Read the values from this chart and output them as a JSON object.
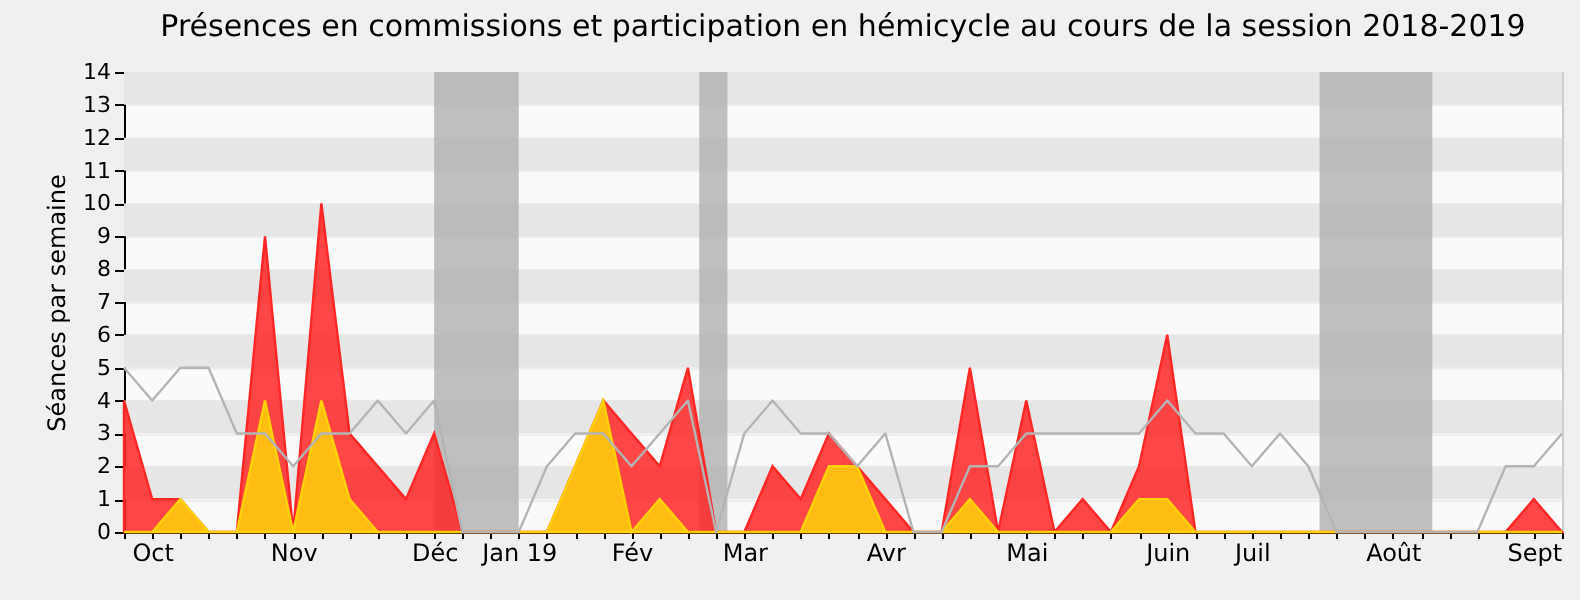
{
  "chart_data": {
    "type": "area",
    "title": "Présences en commissions et participation en hémicycle au cours de la session 2018-2019",
    "ylabel": "Séances par semaine",
    "categories": [
      null,
      "Oct",
      null,
      null,
      null,
      null,
      "Nov",
      null,
      null,
      null,
      null,
      "Déc",
      null,
      null,
      "Jan 19",
      null,
      null,
      null,
      "Fév",
      null,
      null,
      null,
      "Mar",
      null,
      null,
      null,
      null,
      "Avr",
      null,
      null,
      null,
      null,
      "Mai",
      null,
      null,
      null,
      null,
      "Juin",
      null,
      null,
      "Juil",
      null,
      null,
      null,
      null,
      "Août",
      null,
      null,
      null,
      null,
      "Sept",
      null
    ],
    "series": [
      {
        "color": "#ff2626",
        "values": [
          4,
          1,
          1,
          0,
          0,
          9,
          0,
          10,
          3,
          2,
          1,
          3,
          0,
          0,
          0,
          0,
          2,
          4,
          3,
          2,
          5,
          0,
          0,
          2,
          1,
          3,
          2,
          1,
          0,
          0,
          5,
          0,
          4,
          0,
          1,
          0,
          2,
          6,
          0,
          0,
          0,
          0,
          0,
          0,
          0,
          0,
          0,
          0,
          0,
          0,
          1,
          0
        ]
      },
      {
        "color": "#ffd20a",
        "values": [
          0,
          0,
          1,
          0,
          0,
          4,
          0,
          4,
          1,
          0,
          0,
          0,
          0,
          0,
          0,
          0,
          2,
          4,
          0,
          1,
          0,
          0,
          0,
          0,
          0,
          2,
          2,
          0,
          0,
          0,
          1,
          0,
          0,
          0,
          0,
          0,
          1,
          1,
          0,
          0,
          0,
          0,
          0,
          0,
          0,
          0,
          0,
          0,
          0,
          0,
          0,
          0
        ]
      },
      {
        "type": "line",
        "color": "#b4b4b4",
        "values": [
          5,
          4,
          5,
          5,
          3,
          3,
          2,
          3,
          3,
          4,
          3,
          4,
          0,
          0,
          0,
          2,
          3,
          3,
          2,
          3,
          4,
          0,
          3,
          4,
          3,
          3,
          2,
          3,
          0,
          0,
          2,
          2,
          3,
          3,
          3,
          3,
          3,
          4,
          3,
          3,
          2,
          3,
          2,
          0,
          0,
          0,
          0,
          0,
          0,
          2,
          2,
          3
        ]
      }
    ],
    "ylim": [
      0,
      14
    ],
    "yticks": [
      0,
      1,
      2,
      3,
      4,
      5,
      6,
      7,
      8,
      9,
      10,
      11,
      12,
      13,
      14
    ],
    "grid": "y",
    "bands": [
      {
        "axis": "x",
        "from": "Déc",
        "to": "Jan 19",
        "color": "#b0b0b0"
      }
    ]
  }
}
